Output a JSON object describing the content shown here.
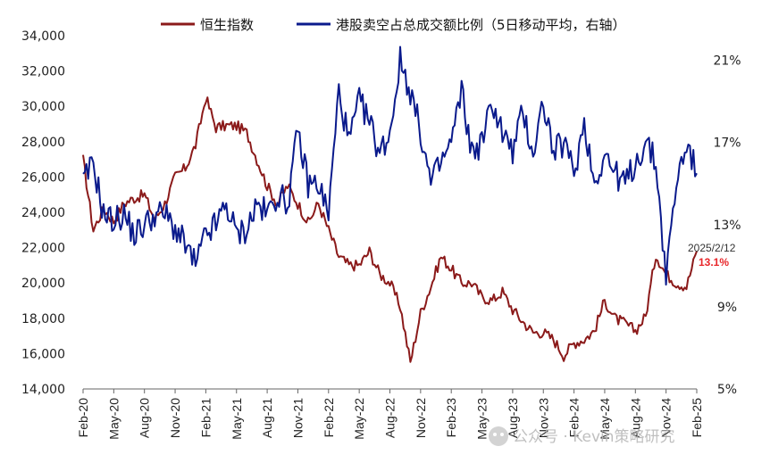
{
  "chart_data": {
    "type": "line",
    "title": "",
    "series": [
      {
        "name": "恒生指数",
        "axis": "left",
        "color": "#8b1a1a",
        "x": [
          "2020-02",
          "2020-03",
          "2020-04",
          "2020-05",
          "2020-06",
          "2020-07",
          "2020-08",
          "2020-09",
          "2020-10",
          "2020-11",
          "2020-12",
          "2021-01",
          "2021-02",
          "2021-03",
          "2021-04",
          "2021-05",
          "2021-06",
          "2021-07",
          "2021-08",
          "2021-09",
          "2021-10",
          "2021-11",
          "2021-12",
          "2022-01",
          "2022-02",
          "2022-03",
          "2022-04",
          "2022-05",
          "2022-06",
          "2022-07",
          "2022-08",
          "2022-09",
          "2022-10",
          "2022-11",
          "2022-12",
          "2023-01",
          "2023-02",
          "2023-03",
          "2023-04",
          "2023-05",
          "2023-06",
          "2023-07",
          "2023-08",
          "2023-09",
          "2023-10",
          "2023-11",
          "2023-12",
          "2024-01",
          "2024-02",
          "2024-03",
          "2024-04",
          "2024-05",
          "2024-06",
          "2024-07",
          "2024-08",
          "2024-09",
          "2024-10",
          "2024-11",
          "2024-12",
          "2025-01",
          "2025-02"
        ],
        "values": [
          27000,
          23000,
          24200,
          23500,
          24500,
          24800,
          25000,
          23600,
          24500,
          26000,
          26500,
          27800,
          30500,
          28800,
          28900,
          28900,
          28500,
          27000,
          25500,
          24500,
          25500,
          24500,
          23400,
          24500,
          23000,
          21500,
          21000,
          21000,
          21800,
          20500,
          20000,
          18700,
          15500,
          18300,
          19800,
          21500,
          20800,
          20000,
          20000,
          19200,
          19000,
          19500,
          18500,
          17800,
          17200,
          17200,
          16800,
          15900,
          16600,
          16800,
          17300,
          19000,
          18000,
          17700,
          17300,
          18100,
          21600,
          20500,
          20000,
          19800,
          21800
        ]
      },
      {
        "name": "港股卖空占总成交额比例（5日移动平均，右轴",
        "axis": "right",
        "color": "#0a1a8c",
        "x": [
          "2020-02",
          "2020-03",
          "2020-04",
          "2020-05",
          "2020-06",
          "2020-07",
          "2020-08",
          "2020-09",
          "2020-10",
          "2020-11",
          "2020-12",
          "2021-01",
          "2021-02",
          "2021-03",
          "2021-04",
          "2021-05",
          "2021-06",
          "2021-07",
          "2021-08",
          "2021-09",
          "2021-10",
          "2021-11",
          "2021-12",
          "2022-01",
          "2022-02",
          "2022-03",
          "2022-04",
          "2022-05",
          "2022-06",
          "2022-07",
          "2022-08",
          "2022-09",
          "2022-10",
          "2022-11",
          "2022-12",
          "2023-01",
          "2023-02",
          "2023-03",
          "2023-04",
          "2023-05",
          "2023-06",
          "2023-07",
          "2023-08",
          "2023-09",
          "2023-10",
          "2023-11",
          "2023-12",
          "2024-01",
          "2024-02",
          "2024-03",
          "2024-04",
          "2024-05",
          "2024-06",
          "2024-07",
          "2024-08",
          "2024-09",
          "2024-10",
          "2024-11",
          "2024-12",
          "2025-01",
          "2025-02"
        ],
        "values": [
          15.0,
          16.0,
          13.5,
          13.2,
          13.5,
          12.5,
          13.0,
          13.5,
          13.5,
          12.8,
          12.0,
          11.0,
          12.5,
          13.0,
          14.0,
          12.5,
          12.8,
          14.0,
          13.5,
          14.5,
          14.0,
          17.5,
          15.0,
          15.0,
          13.5,
          19.5,
          17.0,
          19.0,
          18.0,
          16.5,
          17.5,
          21.0,
          19.5,
          17.5,
          15.0,
          16.0,
          17.0,
          19.5,
          16.5,
          17.0,
          19.0,
          17.5,
          16.5,
          18.5,
          16.5,
          19.0,
          16.5,
          17.0,
          15.5,
          18.0,
          15.0,
          16.5,
          15.5,
          15.0,
          16.0,
          17.0,
          16.0,
          10.5,
          15.0,
          17.0,
          15.5
        ]
      }
    ],
    "y_left": {
      "ticks": [
        "34,000",
        "32,000",
        "30,000",
        "28,000",
        "26,000",
        "24,000",
        "22,000",
        "20,000",
        "18,000",
        "16,000",
        "14,000"
      ],
      "min": 14000,
      "max": 34000
    },
    "y_right": {
      "ticks": [
        "21%",
        "17%",
        "13%",
        "9%",
        "5%"
      ],
      "min": 5,
      "max": 22.2
    },
    "x_ticks": [
      "Feb-20",
      "May-20",
      "Aug-20",
      "Nov-20",
      "Feb-21",
      "May-21",
      "Aug-21",
      "Nov-21",
      "Feb-22",
      "May-22",
      "Aug-22",
      "Nov-22",
      "Feb-23",
      "May-23",
      "Aug-23",
      "Nov-23",
      "Feb-24",
      "May-24",
      "Aug-24",
      "Nov-24",
      "Feb-25"
    ],
    "annotation": {
      "date": "2025/2/12",
      "value": "13.1%"
    },
    "legend_position": "top",
    "watermark": "公众号 · Kevin策略研究"
  }
}
